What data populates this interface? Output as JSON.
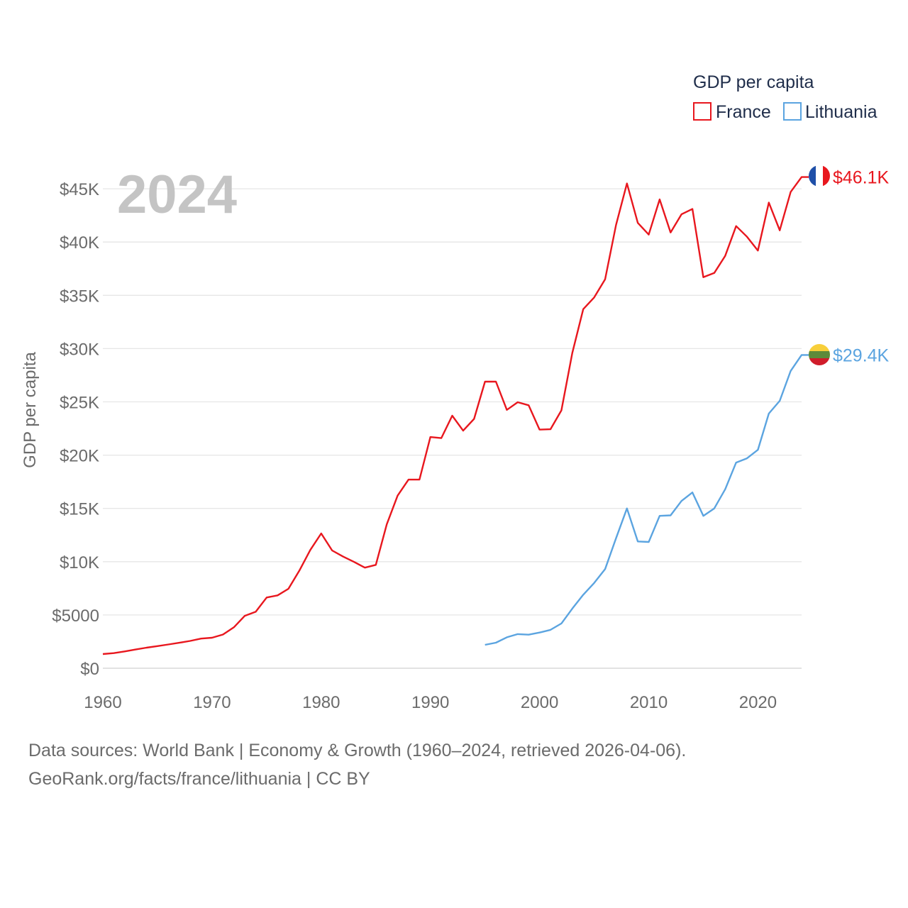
{
  "chart_data": {
    "type": "line",
    "title": "",
    "xlabel": "",
    "ylabel": "GDP per capita",
    "year_label": "2024",
    "xlim": [
      1960,
      2024
    ],
    "ylim": [
      0,
      46500
    ],
    "x_ticks": [
      "1960",
      "1970",
      "1980",
      "1990",
      "2000",
      "2010",
      "2020"
    ],
    "y_ticks": [
      {
        "value": 0,
        "label": "$0"
      },
      {
        "value": 5000,
        "label": "$5000"
      },
      {
        "value": 10000,
        "label": "$10K"
      },
      {
        "value": 15000,
        "label": "$15K"
      },
      {
        "value": 20000,
        "label": "$20K"
      },
      {
        "value": 25000,
        "label": "$25K"
      },
      {
        "value": 30000,
        "label": "$30K"
      },
      {
        "value": 35000,
        "label": "$35K"
      },
      {
        "value": 40000,
        "label": "$40K"
      },
      {
        "value": 45000,
        "label": "$45K"
      }
    ],
    "grid": true,
    "legend": {
      "title": "GDP per capita",
      "placement": "top-right"
    },
    "series": [
      {
        "name": "France",
        "color": "#e8171e",
        "end_label": "$46.1K",
        "flag": "france-flag",
        "x": [
          1960,
          1961,
          1962,
          1963,
          1964,
          1965,
          1966,
          1967,
          1968,
          1969,
          1970,
          1971,
          1972,
          1973,
          1974,
          1975,
          1976,
          1977,
          1978,
          1979,
          1980,
          1981,
          1982,
          1983,
          1984,
          1985,
          1986,
          1987,
          1988,
          1989,
          1990,
          1991,
          1992,
          1993,
          1994,
          1995,
          1996,
          1997,
          1998,
          1999,
          2000,
          2001,
          2002,
          2003,
          2004,
          2005,
          2006,
          2007,
          2008,
          2009,
          2010,
          2011,
          2012,
          2013,
          2014,
          2015,
          2016,
          2017,
          2018,
          2019,
          2020,
          2021,
          2022,
          2023,
          2024
        ],
        "values": [
          1330,
          1420,
          1580,
          1760,
          1930,
          2080,
          2230,
          2390,
          2560,
          2780,
          2860,
          3160,
          3840,
          4920,
          5300,
          6640,
          6840,
          7460,
          9160,
          11100,
          12650,
          11050,
          10480,
          9980,
          9440,
          9700,
          13500,
          16200,
          17700,
          17700,
          21700,
          21600,
          23700,
          22300,
          23400,
          26900,
          26900,
          24250,
          24970,
          24680,
          22400,
          22430,
          24200,
          29600,
          33700,
          34800,
          36500,
          41600,
          45500,
          41800,
          40700,
          44000,
          40900,
          42600,
          43100,
          36700,
          37100,
          38700,
          41500,
          40500,
          39200,
          43700,
          41100,
          44700,
          46100
        ]
      },
      {
        "name": "Lithuania",
        "color": "#5ba4e0",
        "end_label": "$29.4K",
        "flag": "lithuania-flag",
        "x": [
          1995,
          1996,
          1997,
          1998,
          1999,
          2000,
          2001,
          2002,
          2003,
          2004,
          2005,
          2006,
          2007,
          2008,
          2009,
          2010,
          2011,
          2012,
          2013,
          2014,
          2015,
          2016,
          2017,
          2018,
          2019,
          2020,
          2021,
          2022,
          2023,
          2024
        ],
        "values": [
          2200,
          2400,
          2900,
          3200,
          3150,
          3350,
          3600,
          4200,
          5600,
          6900,
          8000,
          9300,
          12200,
          15000,
          11900,
          11850,
          14300,
          14350,
          15700,
          16500,
          14300,
          15000,
          16800,
          19300,
          19700,
          20500,
          23900,
          25100,
          27900,
          29400
        ]
      }
    ]
  },
  "footer": {
    "line1": "Data sources: World Bank | Economy & Growth (1960–2024, retrieved 2026-04-06).",
    "line2": "GeoRank.org/facts/france/lithuania | CC BY"
  }
}
